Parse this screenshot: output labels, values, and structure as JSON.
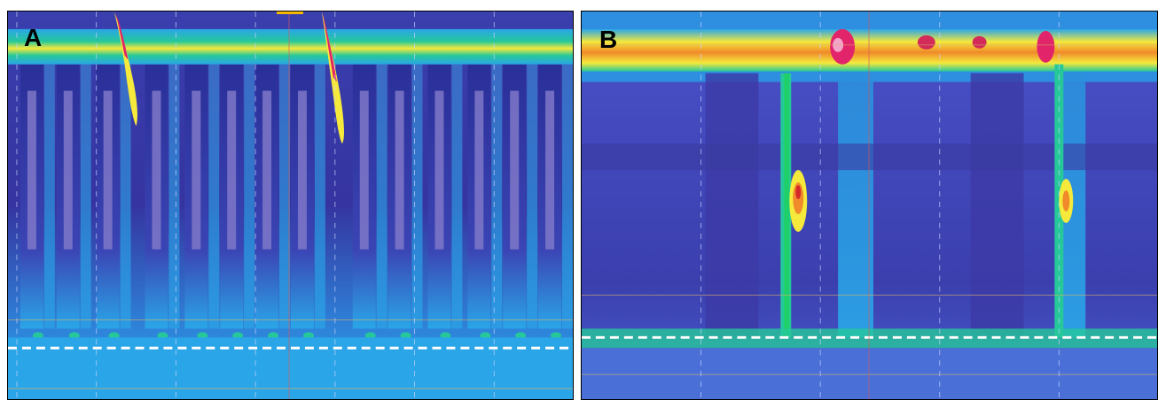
{
  "panels": [
    {
      "id": "A",
      "label": "A"
    },
    {
      "id": "B",
      "label": "B"
    }
  ],
  "colors": {
    "background": "#3f2f9a",
    "low": "#4a52c9",
    "mid_low": "#2aa6e8",
    "mid": "#26c89a",
    "mid_high": "#f5e93c",
    "high": "#f08a2a",
    "peak": "#e2246b",
    "dashed_line": "#ffffff",
    "marker": "#f2b800"
  }
}
